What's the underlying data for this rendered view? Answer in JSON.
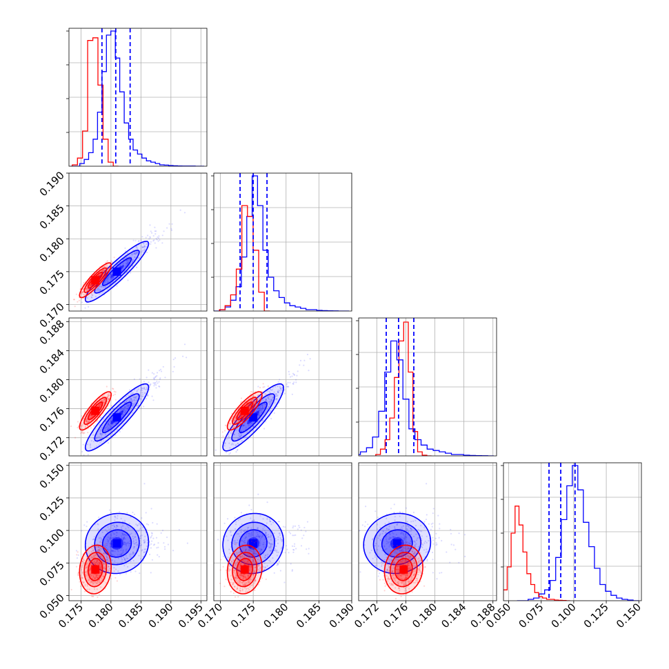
{
  "chart_data": {
    "type": "corner",
    "grid": true,
    "params": [
      {
        "range": [
          0.173,
          0.196
        ],
        "ticks": [
          0.175,
          0.18,
          0.185,
          0.19,
          0.195
        ],
        "tick_labels": [
          "0.175",
          "0.180",
          "0.185",
          "0.190",
          "0.195"
        ],
        "quantiles_blue": [
          0.1785,
          0.1808,
          0.1832
        ]
      },
      {
        "range": [
          0.169,
          0.19
        ],
        "ticks": [
          0.17,
          0.175,
          0.18,
          0.185,
          0.19
        ],
        "tick_labels": [
          "0.170",
          "0.175",
          "0.180",
          "0.185",
          "0.190"
        ],
        "quantiles_blue": [
          0.173,
          0.175,
          0.1771
        ]
      },
      {
        "range": [
          0.1695,
          0.1885
        ],
        "ticks": [
          0.172,
          0.176,
          0.18,
          0.184,
          0.188
        ],
        "tick_labels": [
          "0.172",
          "0.176",
          "0.180",
          "0.184",
          "0.188"
        ],
        "quantiles_blue": [
          0.1733,
          0.175,
          0.1771
        ]
      },
      {
        "range": [
          0.046,
          0.152
        ],
        "ticks": [
          0.05,
          0.075,
          0.1,
          0.125,
          0.15
        ],
        "tick_labels": [
          "0.050",
          "0.075",
          "0.100",
          "0.125",
          "0.150"
        ],
        "quantiles_blue": [
          0.081,
          0.09,
          0.101
        ]
      }
    ],
    "series": [
      {
        "color": "#0000ff",
        "means": [
          0.181,
          0.175,
          0.1748,
          0.09
        ],
        "sds": [
          0.0024,
          0.0021,
          0.0021,
          0.0105
        ],
        "corr": [
          [
            1,
            0.92,
            0.9,
            0.05
          ],
          [
            0.92,
            1,
            0.88,
            0.05
          ],
          [
            0.9,
            0.88,
            1,
            0.05
          ],
          [
            0.05,
            0.05,
            0.05,
            1
          ]
        ],
        "hists": [
          [
            0,
            0,
            0.02,
            0.05,
            0.1,
            0.2,
            0.4,
            0.7,
            0.97,
            1,
            0.8,
            0.55,
            0.32,
            0.2,
            0.12,
            0.09,
            0.06,
            0.04,
            0.03,
            0.02,
            0.01,
            0.008,
            0.005,
            0.003,
            0.002,
            0.001,
            0.001,
            0.001,
            0,
            0
          ],
          [
            0,
            0,
            0.01,
            0.03,
            0.08,
            0.18,
            0.4,
            0.7,
            1,
            0.78,
            0.45,
            0.25,
            0.15,
            0.1,
            0.06,
            0.04,
            0.03,
            0.02,
            0.01,
            0.01,
            0.005,
            0.003,
            0.002,
            0.001,
            0,
            0
          ],
          [
            0,
            0.01,
            0.03,
            0.06,
            0.14,
            0.33,
            0.62,
            0.85,
            0.71,
            0.42,
            0.2,
            0.12,
            0.08,
            0.05,
            0.04,
            0.03,
            0.02,
            0.01,
            0.01,
            0.005,
            0.003,
            0.002,
            0.001,
            0
          ],
          [
            0,
            0,
            0.01,
            0.02,
            0.05,
            0.08,
            0.15,
            0.32,
            0.6,
            0.85,
            1,
            0.82,
            0.58,
            0.4,
            0.24,
            0.12,
            0.07,
            0.04,
            0.02,
            0.01,
            0.005,
            0
          ]
        ]
      },
      {
        "color": "#ff0000",
        "means": [
          0.1774,
          0.1737,
          0.1757,
          0.07
        ],
        "sds": [
          0.0012,
          0.0012,
          0.0012,
          0.0085
        ],
        "corr": [
          [
            1,
            0.88,
            0.85,
            0.1
          ],
          [
            0.88,
            1,
            0.84,
            0.1
          ],
          [
            0.85,
            0.84,
            1,
            0.1
          ],
          [
            0.1,
            0.1,
            0.1,
            1
          ]
        ],
        "hists": [
          [
            0.01,
            0.06,
            0.26,
            0.93,
            0.95,
            0.6,
            0.2,
            0.03,
            0
          ],
          [
            0.01,
            0.04,
            0.12,
            0.31,
            0.78,
            0.7,
            0.45,
            0.14,
            0
          ],
          [
            0.01,
            0.05,
            0.12,
            0.28,
            0.58,
            0.85,
            0.99,
            0.62,
            0.18,
            0.03,
            0.005,
            0
          ],
          [
            0.01,
            0.08,
            0.25,
            0.5,
            0.7,
            0.56,
            0.36,
            0.2,
            0.12,
            0.06,
            0.03,
            0.02,
            0.01,
            0.01,
            0.005,
            0.003,
            0.002,
            0
          ]
        ]
      }
    ]
  }
}
